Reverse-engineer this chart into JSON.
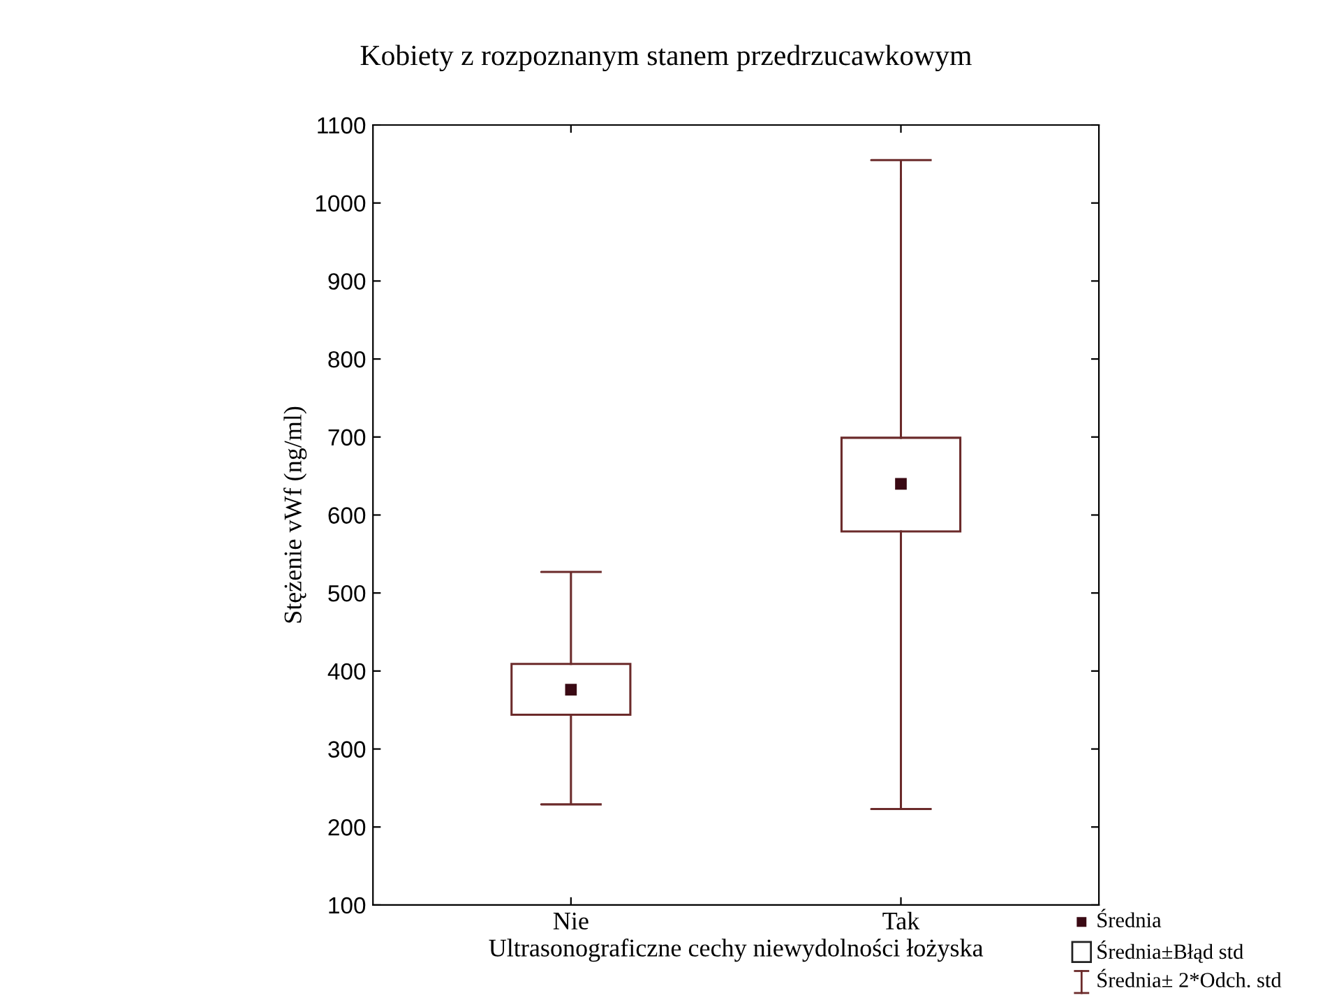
{
  "chart_data": {
    "type": "box",
    "title": "Kobiety z rozpoznanym stanem przedrzucawkowym",
    "xlabel": "Ultrasonograficzne cechy niewydolności łożyska",
    "ylabel": "Stężenie vWf (ng/ml)",
    "categories": [
      "Nie",
      "Tak"
    ],
    "series": [
      {
        "color": "#6b2a2a",
        "boxes": [
          {
            "low": 229,
            "q1": 344,
            "mean": 376,
            "q3": 409,
            "high": 527
          },
          {
            "low": 223,
            "q1": 579,
            "mean": 640,
            "q3": 699,
            "high": 1055
          }
        ]
      }
    ],
    "ylim": [
      100,
      1100
    ],
    "yticks": [
      100,
      200,
      300,
      400,
      500,
      600,
      700,
      800,
      900,
      1000,
      1100
    ],
    "grid": false,
    "marker": "square",
    "annotations": [
      "Średnia",
      "Średnia±Błąd std",
      "Średnia± 2*Odch. std"
    ]
  }
}
